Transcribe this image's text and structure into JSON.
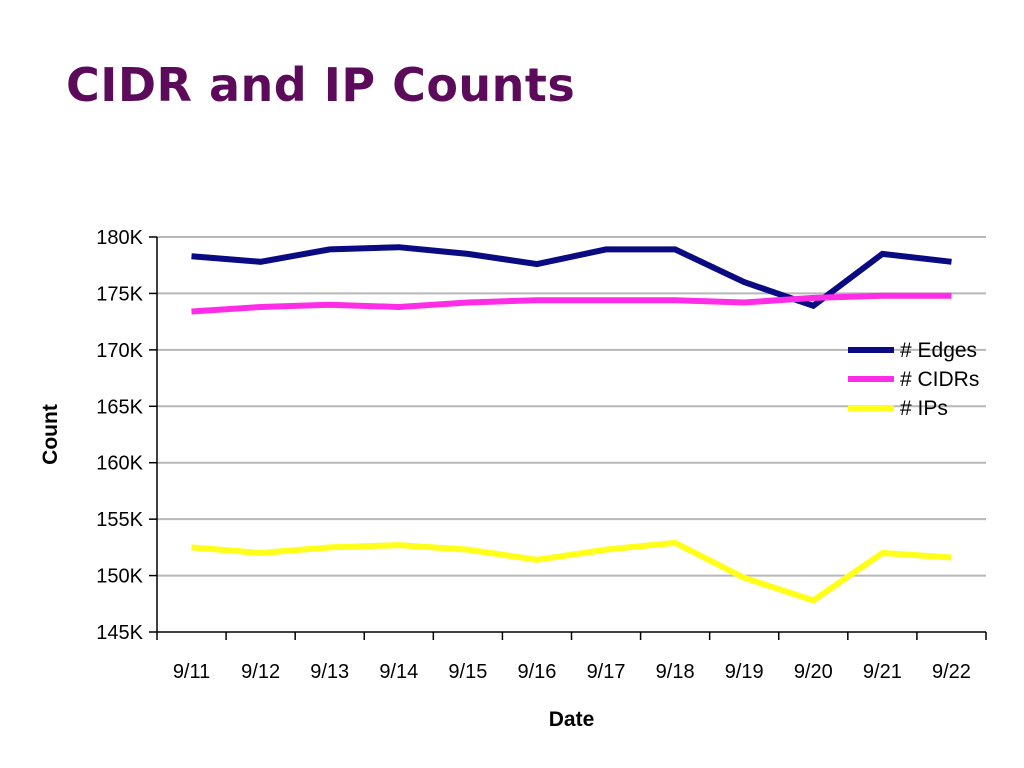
{
  "slide": {
    "title": "CIDR and IP Counts"
  },
  "chart_data": {
    "type": "line",
    "title": "",
    "xlabel": "Date",
    "ylabel": "Count",
    "categories": [
      "9/11",
      "9/12",
      "9/13",
      "9/14",
      "9/15",
      "9/16",
      "9/17",
      "9/18",
      "9/19",
      "9/20",
      "9/21",
      "9/22"
    ],
    "yticks": [
      {
        "value": 145000,
        "label": "145K"
      },
      {
        "value": 150000,
        "label": "150K"
      },
      {
        "value": 155000,
        "label": "155K"
      },
      {
        "value": 160000,
        "label": "160K"
      },
      {
        "value": 165000,
        "label": "165K"
      },
      {
        "value": 170000,
        "label": "170K"
      },
      {
        "value": 175000,
        "label": "175K"
      },
      {
        "value": 180000,
        "label": "180K"
      }
    ],
    "ylim": [
      145000,
      180000
    ],
    "grid": true,
    "legend_position": "right",
    "series": [
      {
        "name": "# Edges",
        "color": "#0a0a82",
        "values": [
          178300,
          177800,
          178900,
          179100,
          178500,
          177600,
          178900,
          178900,
          176000,
          173900,
          178500,
          177800
        ]
      },
      {
        "name": "# CIDRs",
        "color": "#ff2ee6",
        "values": [
          173400,
          173800,
          174000,
          173800,
          174200,
          174400,
          174400,
          174400,
          174200,
          174600,
          174800,
          174800
        ]
      },
      {
        "name": "# IPs",
        "color": "#ffff1a",
        "values": [
          152500,
          152000,
          152500,
          152700,
          152300,
          151400,
          152300,
          152900,
          149800,
          147800,
          152000,
          151600
        ]
      }
    ]
  }
}
